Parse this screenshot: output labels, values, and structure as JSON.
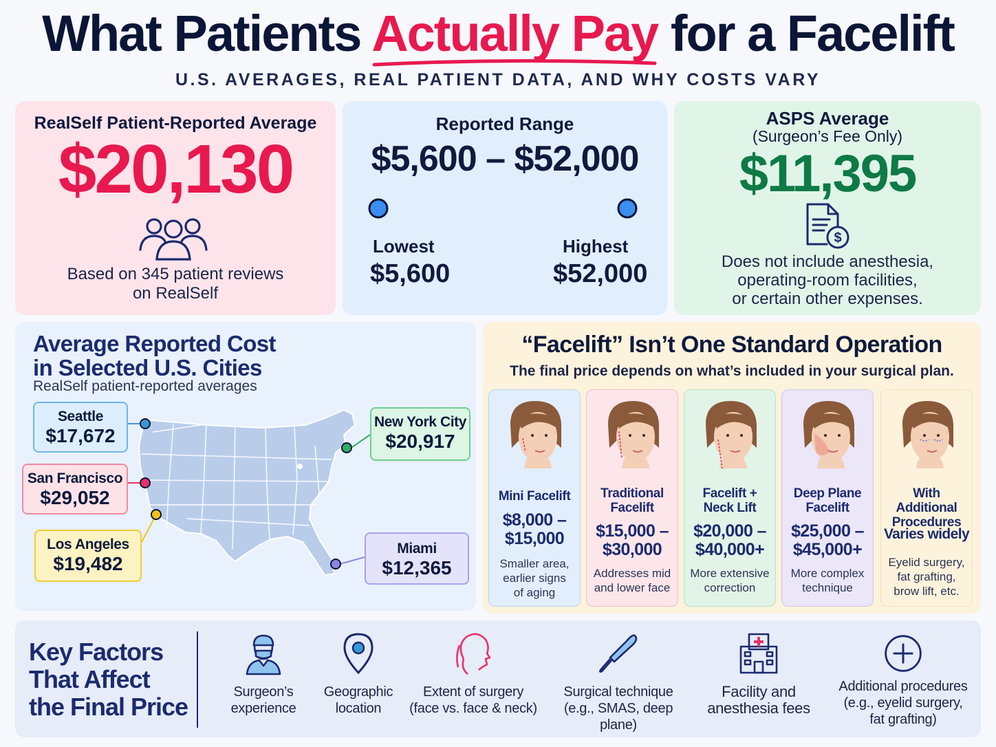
{
  "header": {
    "title_pre": "What Patients ",
    "title_accent": "Actually Pay",
    "title_post": " for a Facelift",
    "subtitle": "U.S. AVERAGES, REAL PATIENT DATA, AND WHY COSTS VARY"
  },
  "realself": {
    "label": "RealSelf Patient-Reported Average",
    "value": "$20,130",
    "note_line1": "Based on 345 patient reviews",
    "note_line2": "on RealSelf",
    "icon": "people-icon"
  },
  "range": {
    "label": "Reported Range",
    "value": "$5,600 – $52,000",
    "low_label": "Lowest",
    "low_value": "$5,600",
    "high_label": "Highest",
    "high_value": "$52,000"
  },
  "asps": {
    "label": "ASPS Average",
    "sublabel": "(Surgeon’s Fee Only)",
    "value": "$11,395",
    "note_line1": "Does not include anesthesia,",
    "note_line2": "operating-room facilities,",
    "note_line3": "or certain other expenses.",
    "icon": "document-dollar-icon"
  },
  "cities": {
    "title_line1": "Average Reported Cost",
    "title_line2": "in Selected U.S. Cities",
    "subtitle": "RealSelf patient-reported averages",
    "items": [
      {
        "name": "Seattle",
        "value": "$17,672",
        "color": "#3a97d6"
      },
      {
        "name": "New York City",
        "value": "$20,917",
        "color": "#2fae62"
      },
      {
        "name": "San Francisco",
        "value": "$29,052",
        "color": "#e8306a"
      },
      {
        "name": "Los Angeles",
        "value": "$19,482",
        "color": "#f0c21a"
      },
      {
        "name": "Miami",
        "value": "$12,365",
        "color": "#8c86e0"
      }
    ]
  },
  "procedures": {
    "title": "“Facelift” Isn’t One Standard Operation",
    "subtitle": "The final price depends on what’s included in your surgical plan.",
    "items": [
      {
        "name_line1": "Mini Facelift",
        "name_line2": "",
        "price_line1": "$8,000 –",
        "price_line2": "$15,000",
        "desc_line1": "Smaller area,",
        "desc_line2": "earlier signs",
        "desc_line3": "of aging"
      },
      {
        "name_line1": "Traditional",
        "name_line2": "Facelift",
        "price_line1": "$15,000 –",
        "price_line2": "$30,000",
        "desc_line1": "Addresses mid",
        "desc_line2": "and lower face",
        "desc_line3": ""
      },
      {
        "name_line1": "Facelift +",
        "name_line2": "Neck Lift",
        "price_line1": "$20,000 –",
        "price_line2": "$40,000+",
        "desc_line1": "More extensive",
        "desc_line2": "correction",
        "desc_line3": ""
      },
      {
        "name_line1": "Deep Plane",
        "name_line2": "Facelift",
        "price_line1": "$25,000 –",
        "price_line2": "$45,000+",
        "desc_line1": "More complex",
        "desc_line2": "technique",
        "desc_line3": ""
      },
      {
        "name_line1": "With Additional",
        "name_line2": "Procedures",
        "price_line1": "Varies widely",
        "price_line2": "",
        "desc_line1": "Eyelid surgery,",
        "desc_line2": "fat grafting,",
        "desc_line3": "brow lift, etc."
      }
    ]
  },
  "factors": {
    "title_line1": "Key Factors",
    "title_line2": "That Affect",
    "title_line3": "the Final Price",
    "items": [
      {
        "icon": "surgeon-icon",
        "line1": "Surgeon’s",
        "line2": "experience",
        "line3": ""
      },
      {
        "icon": "location-pin-icon",
        "line1": "Geographic",
        "line2": "location",
        "line3": ""
      },
      {
        "icon": "face-profile-icon",
        "line1": "Extent of surgery",
        "line2": "(face vs. face & neck)",
        "line3": ""
      },
      {
        "icon": "scalpel-icon",
        "line1": "Surgical technique",
        "line2": "(e.g., SMAS, deep plane)",
        "line3": ""
      },
      {
        "icon": "hospital-icon",
        "line1": "Facility and",
        "line2": "anesthesia fees",
        "line3": ""
      },
      {
        "icon": "plus-circle-icon",
        "line1": "Additional procedures",
        "line2": "(e.g., eyelid surgery,",
        "line3": "fat grafting)"
      }
    ]
  },
  "colors": {
    "navy": "#0b1637",
    "accent_red": "#e8194f",
    "green": "#0e7a46",
    "blue": "#2b64d8"
  }
}
